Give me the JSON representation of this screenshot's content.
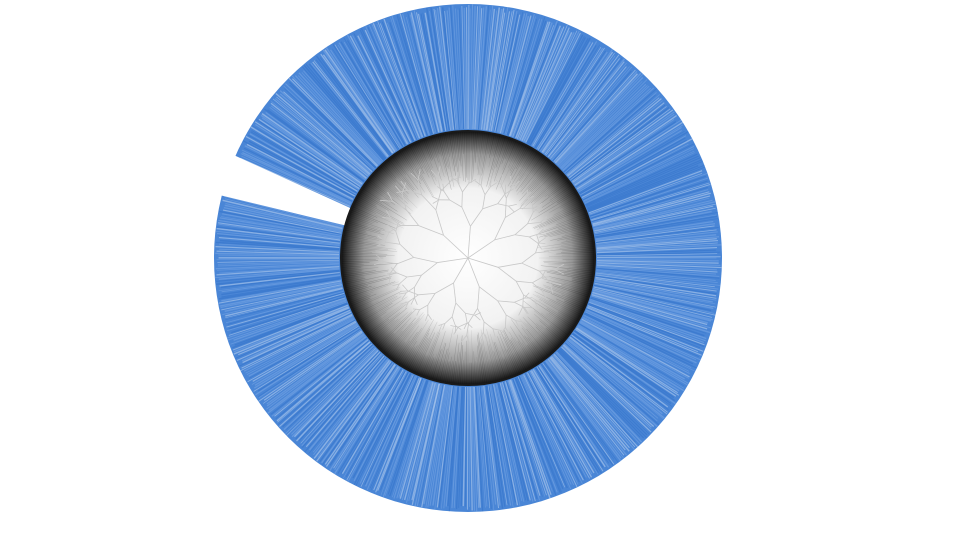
{
  "figure": {
    "type": "circular-phylogenetic-tree",
    "colors": {
      "background": "#ffffff",
      "outer_ring": "#4a86d6",
      "outer_ring_light": "#7aa8e6",
      "outer_ring_dark": "#2f6fc7",
      "inner_disc_edge": "#1a1a1a",
      "inner_disc_center": "#ffffff",
      "branch": "#c8c8c8"
    }
  }
}
